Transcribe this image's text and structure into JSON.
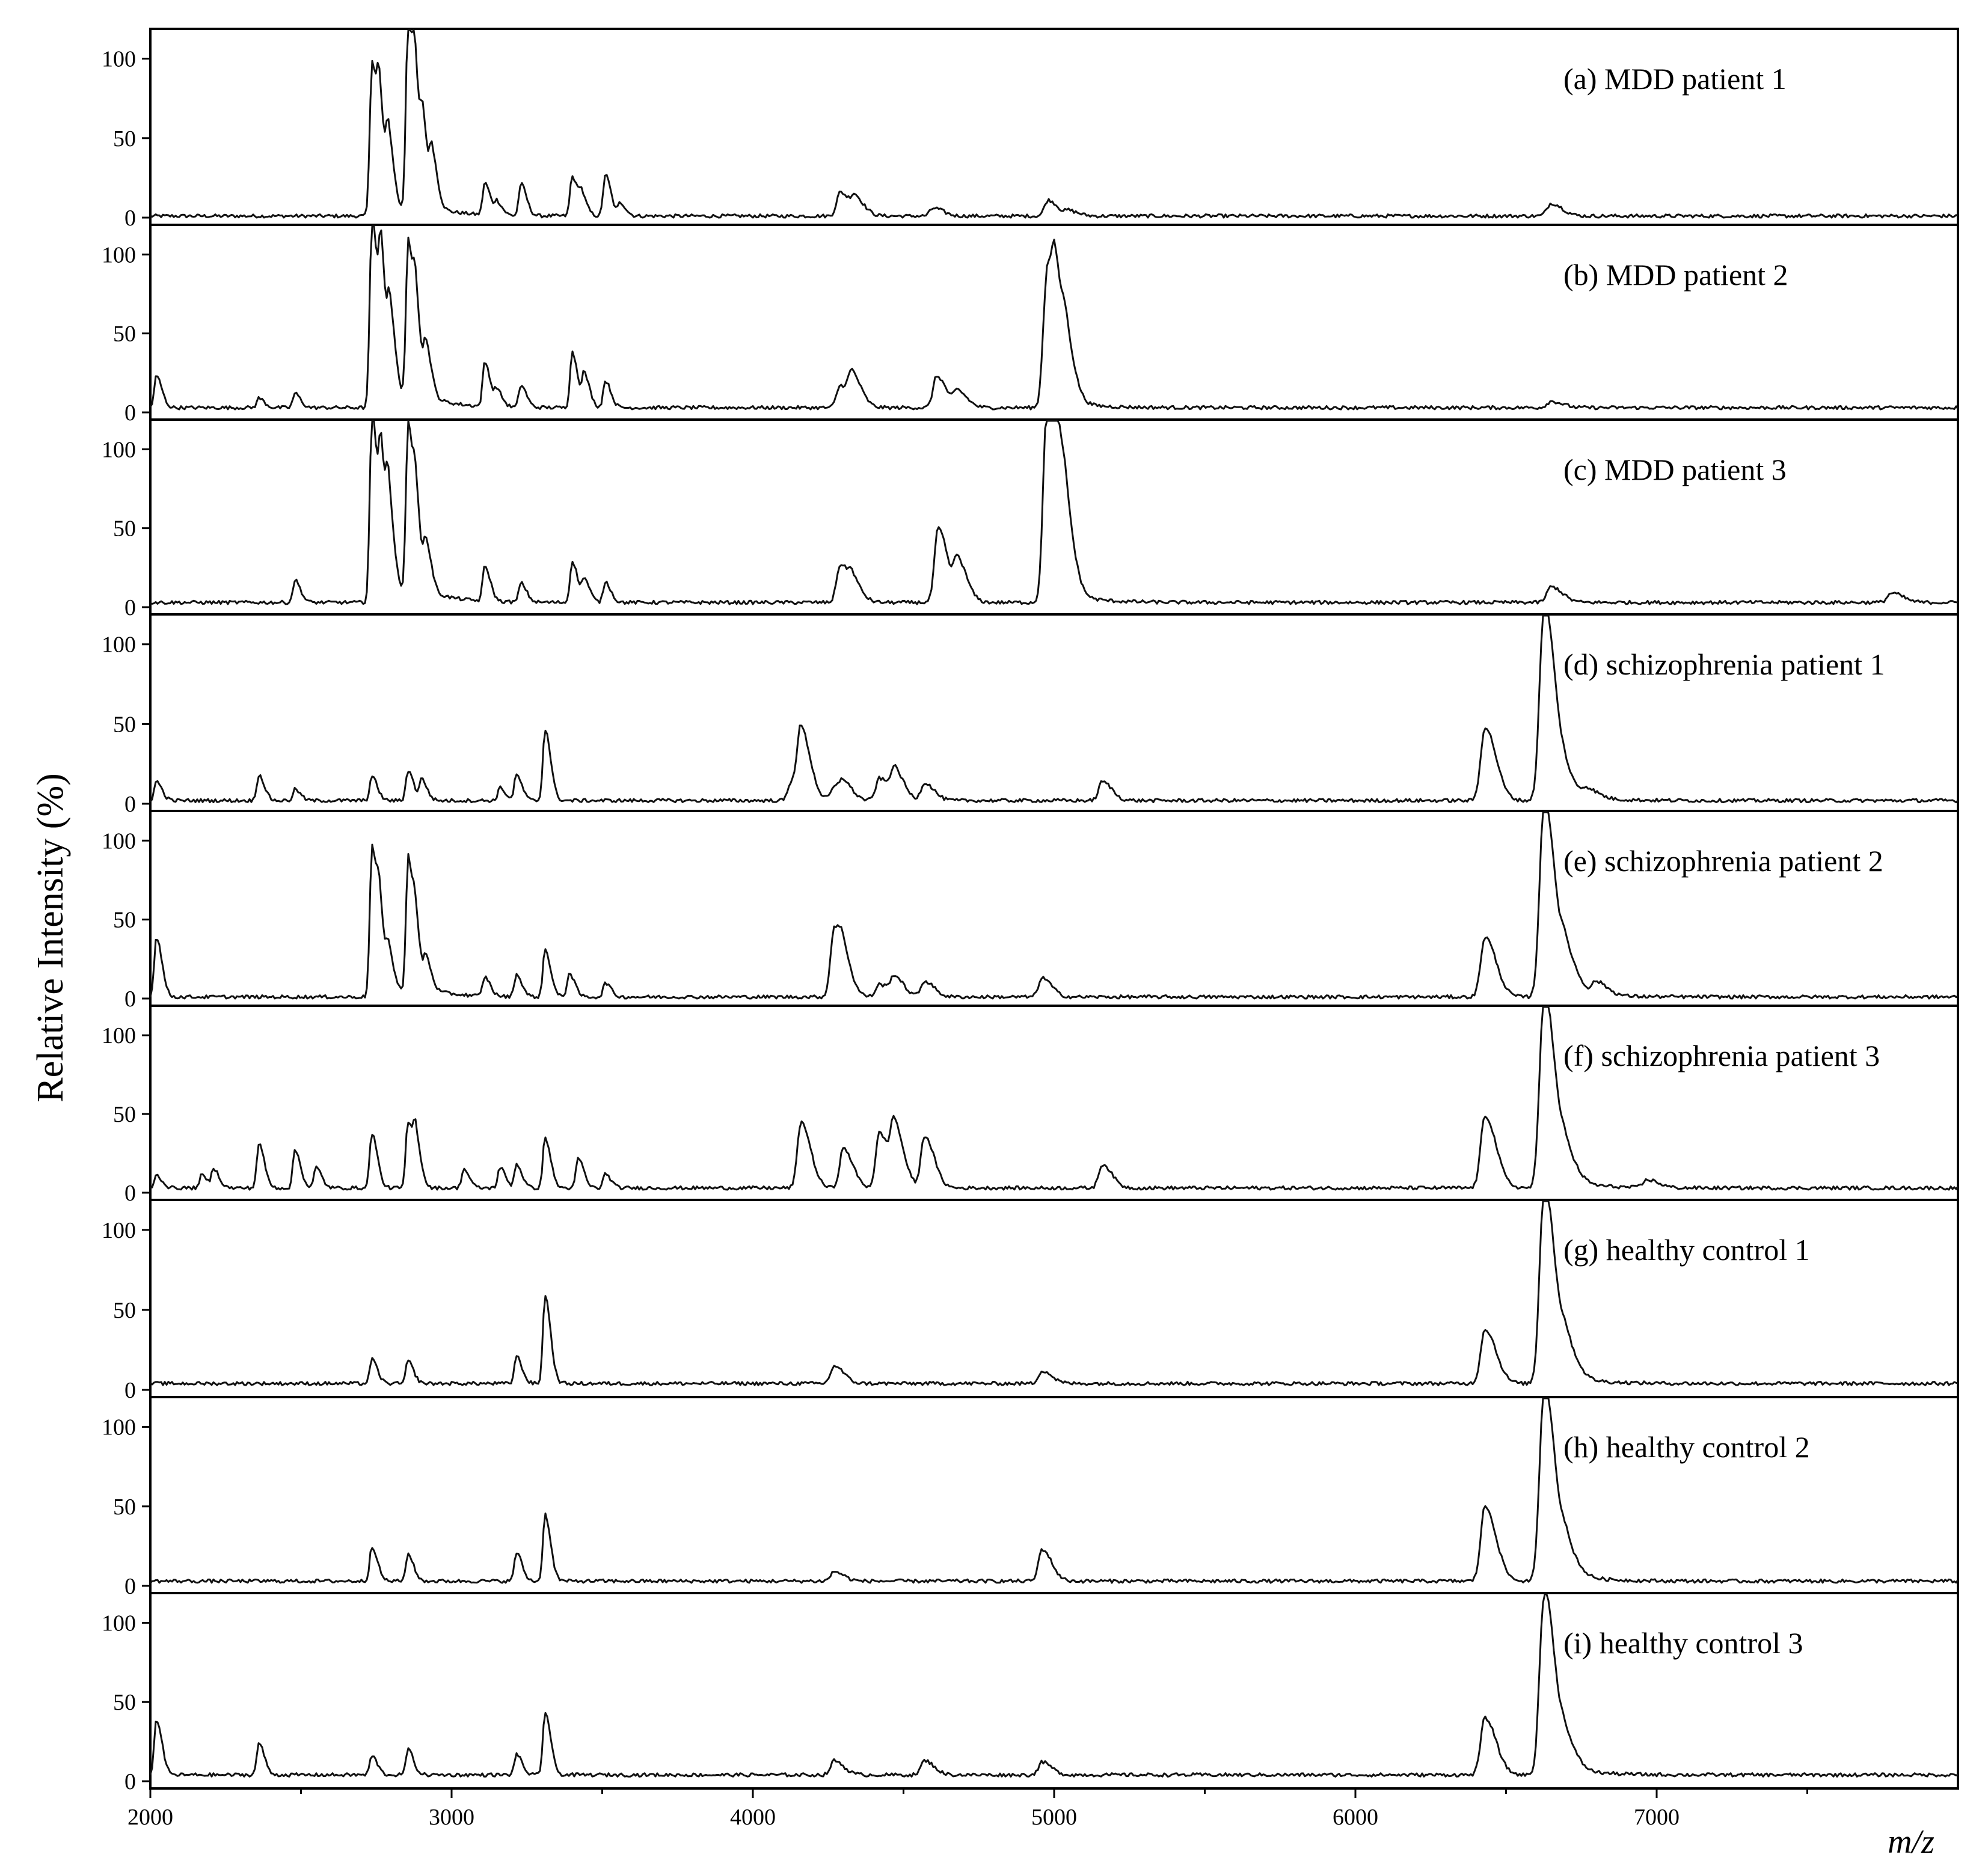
{
  "chart_data": {
    "type": "line",
    "ylabel": "Relative Intensity (%)",
    "xlabel": "m/z",
    "xlim": [
      2000,
      8000
    ],
    "ylim": [
      0,
      118
    ],
    "x_ticks": [
      2000,
      3000,
      4000,
      5000,
      6000,
      7000
    ],
    "y_ticks": [
      0,
      50,
      100
    ],
    "grid": false,
    "panels": [
      {
        "label": "(a) MDD patient 1",
        "baseline": 1,
        "peaks": [
          {
            "mz": 2735,
            "height": 90
          },
          {
            "mz": 2760,
            "height": 52
          },
          {
            "mz": 2790,
            "height": 42
          },
          {
            "mz": 2855,
            "height": 118
          },
          {
            "mz": 2880,
            "height": 52
          },
          {
            "mz": 2905,
            "height": 40
          },
          {
            "mz": 2935,
            "height": 30
          },
          {
            "mz": 3110,
            "height": 20
          },
          {
            "mz": 3150,
            "height": 8
          },
          {
            "mz": 3230,
            "height": 20
          },
          {
            "mz": 3400,
            "height": 25
          },
          {
            "mz": 3430,
            "height": 12
          },
          {
            "mz": 3510,
            "height": 26
          },
          {
            "mz": 3560,
            "height": 8
          },
          {
            "mz": 4290,
            "height": 15
          },
          {
            "mz": 4340,
            "height": 10
          },
          {
            "mz": 4600,
            "height": 5
          },
          {
            "mz": 4980,
            "height": 10
          },
          {
            "mz": 5050,
            "height": 3
          },
          {
            "mz": 6650,
            "height": 8
          }
        ]
      },
      {
        "label": "(b) MDD patient 2",
        "baseline": 3,
        "peaks": [
          {
            "mz": 2020,
            "height": 20
          },
          {
            "mz": 2360,
            "height": 6
          },
          {
            "mz": 2480,
            "height": 9
          },
          {
            "mz": 2735,
            "height": 115
          },
          {
            "mz": 2765,
            "height": 72
          },
          {
            "mz": 2795,
            "height": 45
          },
          {
            "mz": 2855,
            "height": 92
          },
          {
            "mz": 2880,
            "height": 44
          },
          {
            "mz": 2915,
            "height": 30
          },
          {
            "mz": 3110,
            "height": 28
          },
          {
            "mz": 3150,
            "height": 10
          },
          {
            "mz": 3230,
            "height": 14
          },
          {
            "mz": 3400,
            "height": 35
          },
          {
            "mz": 3440,
            "height": 20
          },
          {
            "mz": 3510,
            "height": 17
          },
          {
            "mz": 4290,
            "height": 14
          },
          {
            "mz": 4330,
            "height": 18
          },
          {
            "mz": 4610,
            "height": 20
          },
          {
            "mz": 4680,
            "height": 10
          },
          {
            "mz": 4975,
            "height": 80
          },
          {
            "mz": 5005,
            "height": 45
          },
          {
            "mz": 5040,
            "height": 25
          },
          {
            "mz": 6650,
            "height": 4
          }
        ]
      },
      {
        "label": "(c) MDD patient 3",
        "baseline": 3,
        "peaks": [
          {
            "mz": 2480,
            "height": 14
          },
          {
            "mz": 2735,
            "height": 113
          },
          {
            "mz": 2765,
            "height": 68
          },
          {
            "mz": 2790,
            "height": 48
          },
          {
            "mz": 2855,
            "height": 100
          },
          {
            "mz": 2880,
            "height": 40
          },
          {
            "mz": 2915,
            "height": 28
          },
          {
            "mz": 3110,
            "height": 22
          },
          {
            "mz": 3230,
            "height": 12
          },
          {
            "mz": 3400,
            "height": 26
          },
          {
            "mz": 3440,
            "height": 14
          },
          {
            "mz": 3510,
            "height": 13
          },
          {
            "mz": 4290,
            "height": 24
          },
          {
            "mz": 4330,
            "height": 10
          },
          {
            "mz": 4615,
            "height": 47
          },
          {
            "mz": 4680,
            "height": 25
          },
          {
            "mz": 4975,
            "height": 118
          },
          {
            "mz": 5005,
            "height": 60
          },
          {
            "mz": 5040,
            "height": 30
          },
          {
            "mz": 6650,
            "height": 10
          },
          {
            "mz": 7780,
            "height": 6
          }
        ]
      },
      {
        "label": "(d) schizophrenia patient 1",
        "baseline": 2,
        "peaks": [
          {
            "mz": 2020,
            "height": 12
          },
          {
            "mz": 2360,
            "height": 16
          },
          {
            "mz": 2480,
            "height": 7
          },
          {
            "mz": 2735,
            "height": 15
          },
          {
            "mz": 2855,
            "height": 19
          },
          {
            "mz": 2900,
            "height": 13
          },
          {
            "mz": 3160,
            "height": 8
          },
          {
            "mz": 3215,
            "height": 16
          },
          {
            "mz": 3310,
            "height": 45
          },
          {
            "mz": 4160,
            "height": 40
          },
          {
            "mz": 4130,
            "height": 12
          },
          {
            "mz": 4270,
            "height": 8
          },
          {
            "mz": 4300,
            "height": 9
          },
          {
            "mz": 4420,
            "height": 14
          },
          {
            "mz": 4470,
            "height": 18
          },
          {
            "mz": 4570,
            "height": 11
          },
          {
            "mz": 5160,
            "height": 12
          },
          {
            "mz": 6430,
            "height": 46
          },
          {
            "mz": 6625,
            "height": 118
          },
          {
            "mz": 6700,
            "height": 8
          },
          {
            "mz": 6770,
            "height": 5
          }
        ]
      },
      {
        "label": "(e) schizophrenia patient 2",
        "baseline": 1,
        "peaks": [
          {
            "mz": 2020,
            "height": 38
          },
          {
            "mz": 2735,
            "height": 88
          },
          {
            "mz": 2760,
            "height": 36
          },
          {
            "mz": 2790,
            "height": 22
          },
          {
            "mz": 2855,
            "height": 80
          },
          {
            "mz": 2880,
            "height": 26
          },
          {
            "mz": 2915,
            "height": 18
          },
          {
            "mz": 3110,
            "height": 12
          },
          {
            "mz": 3215,
            "height": 14
          },
          {
            "mz": 3310,
            "height": 30
          },
          {
            "mz": 3390,
            "height": 15
          },
          {
            "mz": 3510,
            "height": 9
          },
          {
            "mz": 4270,
            "height": 44
          },
          {
            "mz": 4300,
            "height": 12
          },
          {
            "mz": 4420,
            "height": 8
          },
          {
            "mz": 4470,
            "height": 12
          },
          {
            "mz": 4570,
            "height": 10
          },
          {
            "mz": 4960,
            "height": 12
          },
          {
            "mz": 6430,
            "height": 38
          },
          {
            "mz": 6625,
            "height": 118
          },
          {
            "mz": 6700,
            "height": 20
          },
          {
            "mz": 6800,
            "height": 8
          }
        ]
      },
      {
        "label": "(f) schizophrenia patient 3",
        "baseline": 3,
        "peaks": [
          {
            "mz": 2020,
            "height": 8
          },
          {
            "mz": 2170,
            "height": 8
          },
          {
            "mz": 2210,
            "height": 12
          },
          {
            "mz": 2360,
            "height": 28
          },
          {
            "mz": 2480,
            "height": 24
          },
          {
            "mz": 2550,
            "height": 13
          },
          {
            "mz": 2735,
            "height": 35
          },
          {
            "mz": 2855,
            "height": 42
          },
          {
            "mz": 2880,
            "height": 27
          },
          {
            "mz": 3040,
            "height": 12
          },
          {
            "mz": 3160,
            "height": 13
          },
          {
            "mz": 3215,
            "height": 15
          },
          {
            "mz": 3310,
            "height": 32
          },
          {
            "mz": 3420,
            "height": 19
          },
          {
            "mz": 3510,
            "height": 9
          },
          {
            "mz": 4160,
            "height": 42
          },
          {
            "mz": 4300,
            "height": 25
          },
          {
            "mz": 4420,
            "height": 35
          },
          {
            "mz": 4470,
            "height": 36
          },
          {
            "mz": 4570,
            "height": 33
          },
          {
            "mz": 5160,
            "height": 15
          },
          {
            "mz": 6430,
            "height": 46
          },
          {
            "mz": 6625,
            "height": 118
          },
          {
            "mz": 6700,
            "height": 15
          },
          {
            "mz": 6970,
            "height": 5
          }
        ]
      },
      {
        "label": "(g) healthy control 1",
        "baseline": 4,
        "peaks": [
          {
            "mz": 2735,
            "height": 15
          },
          {
            "mz": 2855,
            "height": 14
          },
          {
            "mz": 3215,
            "height": 17
          },
          {
            "mz": 3310,
            "height": 55
          },
          {
            "mz": 4270,
            "height": 11
          },
          {
            "mz": 4960,
            "height": 8
          },
          {
            "mz": 6430,
            "height": 34
          },
          {
            "mz": 6625,
            "height": 118
          },
          {
            "mz": 6700,
            "height": 18
          }
        ]
      },
      {
        "label": "(h) healthy control 2",
        "baseline": 3,
        "peaks": [
          {
            "mz": 2735,
            "height": 22
          },
          {
            "mz": 2855,
            "height": 17
          },
          {
            "mz": 3215,
            "height": 18
          },
          {
            "mz": 3310,
            "height": 42
          },
          {
            "mz": 4270,
            "height": 6
          },
          {
            "mz": 4960,
            "height": 20
          },
          {
            "mz": 6430,
            "height": 47
          },
          {
            "mz": 6625,
            "height": 118
          },
          {
            "mz": 6700,
            "height": 15
          }
        ]
      },
      {
        "label": "(i) healthy control 3",
        "baseline": 4,
        "peaks": [
          {
            "mz": 2020,
            "height": 35
          },
          {
            "mz": 2360,
            "height": 20
          },
          {
            "mz": 2735,
            "height": 12
          },
          {
            "mz": 2855,
            "height": 16
          },
          {
            "mz": 3215,
            "height": 13
          },
          {
            "mz": 3310,
            "height": 40
          },
          {
            "mz": 4270,
            "height": 9
          },
          {
            "mz": 4570,
            "height": 9
          },
          {
            "mz": 4960,
            "height": 8
          },
          {
            "mz": 6430,
            "height": 36
          },
          {
            "mz": 6625,
            "height": 110
          },
          {
            "mz": 6700,
            "height": 14
          }
        ]
      }
    ]
  }
}
